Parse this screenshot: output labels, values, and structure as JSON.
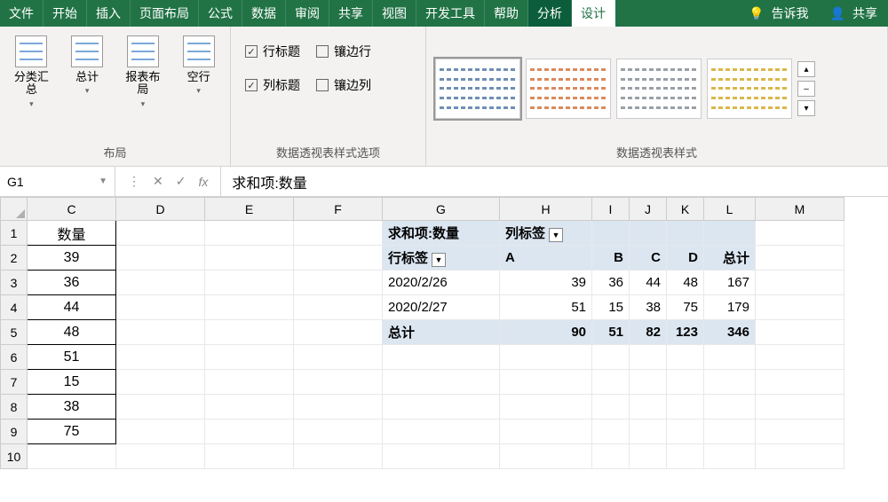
{
  "colors": {
    "brand": "#217346",
    "ribbon_bg": "#f3f2f1",
    "pivot_bg": "#dce6f1"
  },
  "menu": {
    "items": [
      "文件",
      "开始",
      "插入",
      "页面布局",
      "公式",
      "数据",
      "审阅",
      "共享",
      "视图",
      "开发工具",
      "帮助",
      "分析",
      "设计"
    ],
    "active": "设计",
    "highlight": "分析",
    "tell_me": "告诉我",
    "share": "共享"
  },
  "ribbon": {
    "layout": {
      "label": "布局",
      "buttons": [
        {
          "label": "分类汇总",
          "sub": "▾"
        },
        {
          "label": "总计",
          "sub": "▾"
        },
        {
          "label": "报表布局",
          "sub": "▾"
        },
        {
          "label": "空行",
          "sub": "▾"
        }
      ]
    },
    "style_options": {
      "label": "数据透视表样式选项",
      "row_headers": "行标题",
      "banded_rows": "镶边行",
      "col_headers": "列标题",
      "banded_cols": "镶边列",
      "row_headers_checked": true,
      "banded_rows_checked": false,
      "col_headers_checked": true,
      "banded_cols_checked": false
    },
    "styles": {
      "label": "数据透视表样式",
      "thumb_colors": [
        "#6e8fb5",
        "#d98b5f",
        "#9aa0a6",
        "#d9b84a"
      ]
    }
  },
  "formula_bar": {
    "cell_ref": "G1",
    "value": "求和项:数量"
  },
  "sheet": {
    "col_widths": {
      "C": 100,
      "D": 100,
      "E": 100,
      "F": 100,
      "G": 132,
      "H": 104,
      "I": 42,
      "J": 42,
      "K": 42,
      "L": 58,
      "M": 100
    },
    "columns": [
      "C",
      "D",
      "E",
      "F",
      "G",
      "H",
      "I",
      "J",
      "K",
      "L",
      "M"
    ],
    "left": {
      "header": "数量",
      "values": [
        39,
        36,
        44,
        48,
        51,
        15,
        38,
        75
      ]
    },
    "pivot": {
      "measure": "求和项:数量",
      "col_label_hdr": "列标签",
      "row_label_hdr": "行标签",
      "col_labels": [
        "A",
        "B",
        "C",
        "D",
        "总计"
      ],
      "rows": [
        {
          "label": "2020/2/26",
          "vals": [
            39,
            36,
            44,
            48,
            167
          ]
        },
        {
          "label": "2020/2/27",
          "vals": [
            51,
            15,
            38,
            75,
            179
          ]
        }
      ],
      "total_label": "总计",
      "totals": [
        90,
        51,
        82,
        123,
        346
      ]
    }
  }
}
